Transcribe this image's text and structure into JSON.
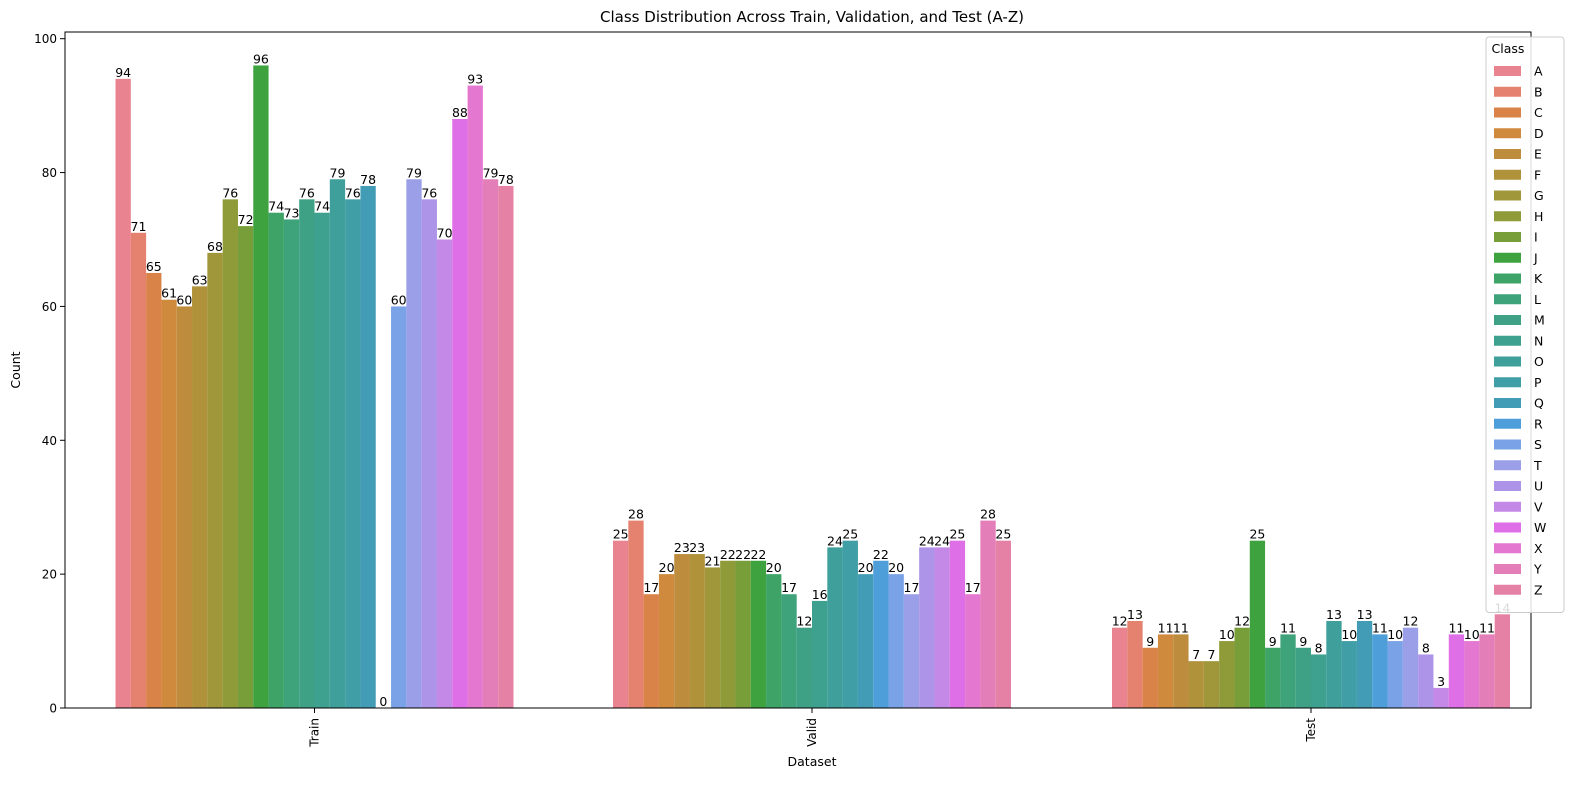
{
  "chart_data": {
    "type": "bar",
    "title": "Class Distribution Across Train, Validation, and Test (A-Z)",
    "xlabel": "Dataset",
    "ylabel": "Count",
    "ylim": [
      0,
      101
    ],
    "yticks": [
      0,
      20,
      40,
      60,
      80,
      100
    ],
    "categories": [
      "Train",
      "Valid",
      "Test"
    ],
    "legend": {
      "title": "Class",
      "placement": "top-right"
    },
    "grid": false,
    "series": [
      {
        "name": "A",
        "color": "#e8838f",
        "values": [
          94,
          25,
          12
        ]
      },
      {
        "name": "B",
        "color": "#e5826f",
        "values": [
          71,
          28,
          13
        ]
      },
      {
        "name": "C",
        "color": "#d98348",
        "values": [
          65,
          17,
          9
        ]
      },
      {
        "name": "D",
        "color": "#cf8a3e",
        "values": [
          61,
          20,
          11
        ]
      },
      {
        "name": "E",
        "color": "#bd8c3c",
        "values": [
          60,
          23,
          11
        ]
      },
      {
        "name": "F",
        "color": "#b0923b",
        "values": [
          63,
          23,
          7
        ]
      },
      {
        "name": "G",
        "color": "#a0963a",
        "values": [
          68,
          21,
          7
        ]
      },
      {
        "name": "H",
        "color": "#8f9a39",
        "values": [
          76,
          22,
          10
        ]
      },
      {
        "name": "I",
        "color": "#789e3a",
        "values": [
          72,
          22,
          12
        ]
      },
      {
        "name": "J",
        "color": "#3ea33f",
        "values": [
          96,
          22,
          25
        ]
      },
      {
        "name": "K",
        "color": "#3da367",
        "values": [
          74,
          20,
          9
        ]
      },
      {
        "name": "L",
        "color": "#3ea27b",
        "values": [
          73,
          17,
          11
        ]
      },
      {
        "name": "M",
        "color": "#3ea185",
        "values": [
          76,
          12,
          9
        ]
      },
      {
        "name": "N",
        "color": "#3ea08f",
        "values": [
          74,
          16,
          8
        ]
      },
      {
        "name": "O",
        "color": "#3f9f9a",
        "values": [
          79,
          24,
          13
        ]
      },
      {
        "name": "P",
        "color": "#409ea6",
        "values": [
          76,
          25,
          10
        ]
      },
      {
        "name": "Q",
        "color": "#429cb5",
        "values": [
          78,
          20,
          13
        ]
      },
      {
        "name": "R",
        "color": "#4d9ed9",
        "values": [
          0,
          22,
          11
        ]
      },
      {
        "name": "S",
        "color": "#7aa2e6",
        "values": [
          60,
          20,
          10
        ]
      },
      {
        "name": "T",
        "color": "#9a9fe8",
        "values": [
          79,
          17,
          12
        ]
      },
      {
        "name": "U",
        "color": "#ae94e8",
        "values": [
          76,
          24,
          8
        ]
      },
      {
        "name": "V",
        "color": "#c488e6",
        "values": [
          70,
          24,
          3
        ]
      },
      {
        "name": "W",
        "color": "#de6fe6",
        "values": [
          88,
          25,
          11
        ]
      },
      {
        "name": "X",
        "color": "#e477cf",
        "values": [
          93,
          17,
          10
        ]
      },
      {
        "name": "Y",
        "color": "#e47eb9",
        "values": [
          79,
          28,
          11
        ]
      },
      {
        "name": "Z",
        "color": "#e681a6",
        "values": [
          78,
          25,
          14
        ]
      }
    ],
    "bar_labels": [
      [
        "94",
        "71",
        "65",
        "61",
        "60",
        "63",
        "68",
        "76",
        "72",
        "96",
        "74",
        "73",
        "76",
        "74",
        "79",
        "76",
        "78",
        "0",
        "60",
        "79",
        "76",
        "70",
        "88",
        "93",
        "79",
        "78"
      ],
      [
        "25",
        "28",
        "17",
        "20",
        "23",
        "23",
        "21",
        "22",
        "22",
        "22",
        "20",
        "17",
        "12",
        "16",
        "24",
        "25",
        "20",
        "22",
        "20",
        "17",
        "24",
        "24",
        "25",
        "17",
        "28",
        "25"
      ],
      [
        "12",
        "13",
        "9",
        "11",
        "11",
        "7",
        "7",
        "10",
        "12",
        "25",
        "9",
        "11",
        "9",
        "8",
        "13",
        "10",
        "13",
        "11",
        "10",
        "12",
        "8",
        "3",
        "11",
        "10",
        "11",
        "14"
      ]
    ]
  }
}
